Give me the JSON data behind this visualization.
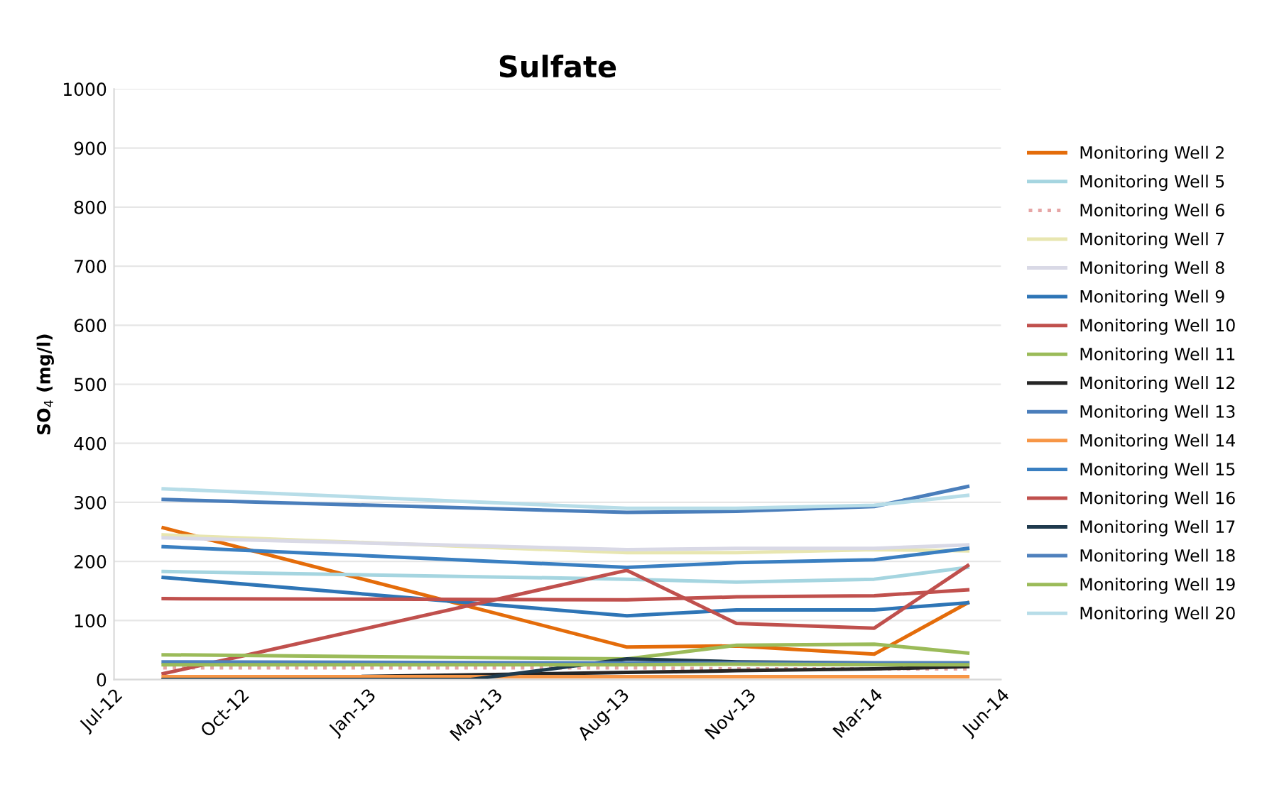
{
  "chart_data": {
    "type": "line",
    "title": "Sulfate",
    "ylabel": "SO$_{4}$ (mg/l)",
    "x": [
      "2012-08-10",
      "2013-08-22",
      "2013-11-19",
      "2014-03-11",
      "2014-05-26"
    ],
    "xlim": [
      "2012-07-01",
      "2014-06-22"
    ],
    "xticks": [
      {
        "value": "2012-07-01",
        "label": "Jul-12"
      },
      {
        "value": "2012-10-12",
        "label": "Oct-12"
      },
      {
        "value": "2013-01-23",
        "label": "Jan-13"
      },
      {
        "value": "2013-05-06",
        "label": "May-13"
      },
      {
        "value": "2013-08-17",
        "label": "Aug-13"
      },
      {
        "value": "2013-11-28",
        "label": "Nov-13"
      },
      {
        "value": "2014-03-11",
        "label": "Mar-14"
      },
      {
        "value": "2014-06-22",
        "label": "Jun-14"
      }
    ],
    "ylim": [
      0,
      1000
    ],
    "yticks": [
      0,
      100,
      200,
      300,
      400,
      500,
      600,
      700,
      800,
      900,
      1000
    ],
    "grid": "y",
    "legend": "right",
    "marker": "none",
    "line_style": "solid",
    "series": [
      {
        "name": "Monitoring Well 2",
        "color": "#e46c0a",
        "values": [
          257,
          55,
          57,
          43,
          130
        ]
      },
      {
        "name": "Monitoring Well 5",
        "color": "#a5d5e0",
        "values": [
          183,
          170,
          165,
          170,
          190
        ]
      },
      {
        "name": "Monitoring Well 6",
        "color": "#e6a5a5",
        "line_style": "dotted",
        "values": [
          20,
          20,
          18,
          18,
          18
        ]
      },
      {
        "name": "Monitoring Well 7",
        "color": "#e8e6b0",
        "values": [
          245,
          215,
          215,
          220,
          218
        ]
      },
      {
        "name": "Monitoring Well 8",
        "color": "#d9d9e6",
        "values": [
          240,
          220,
          222,
          222,
          228
        ]
      },
      {
        "name": "Monitoring Well 9",
        "color": "#2e75b6",
        "values": [
          173,
          108,
          118,
          118,
          130
        ]
      },
      {
        "name": "Monitoring Well 10",
        "color": "#c0504d",
        "values": [
          10,
          185,
          95,
          87,
          193
        ]
      },
      {
        "name": "Monitoring Well 11",
        "color": "#9bbb59",
        "values": [
          42,
          35,
          58,
          60,
          45
        ]
      },
      {
        "name": "Monitoring Well 12",
        "color": "#262626",
        "values": [
          0,
          12,
          15,
          18,
          22
        ]
      },
      {
        "name": "Monitoring Well 13",
        "color": "#4a7ebb",
        "values": [
          305,
          283,
          285,
          293,
          327
        ]
      },
      {
        "name": "Monitoring Well 14",
        "color": "#f79646",
        "values": [
          5,
          5,
          5,
          5,
          5
        ]
      },
      {
        "name": "Monitoring Well 15",
        "color": "#3a7fc1",
        "values": [
          225,
          190,
          198,
          203,
          222
        ]
      },
      {
        "name": "Monitoring Well 16",
        "color": "#c0504d",
        "values": [
          137,
          135,
          140,
          142,
          152
        ]
      },
      {
        "name": "Monitoring Well 17",
        "color": "#1f3a4d",
        "x": [
          "2012-08-10",
          "2013-04-17",
          "2013-08-22",
          "2013-11-19",
          "2014-03-11",
          "2014-05-26"
        ],
        "values": [
          0,
          0,
          35,
          30,
          28,
          28
        ]
      },
      {
        "name": "Monitoring Well 18",
        "color": "#4f81bd",
        "values": [
          30,
          28,
          28,
          28,
          28
        ]
      },
      {
        "name": "Monitoring Well 19",
        "color": "#9bbb59",
        "values": [
          25,
          25,
          26,
          25,
          25
        ]
      },
      {
        "name": "Monitoring Well 20",
        "color": "#b7dde8",
        "values": [
          323,
          290,
          290,
          295,
          312
        ]
      }
    ]
  }
}
